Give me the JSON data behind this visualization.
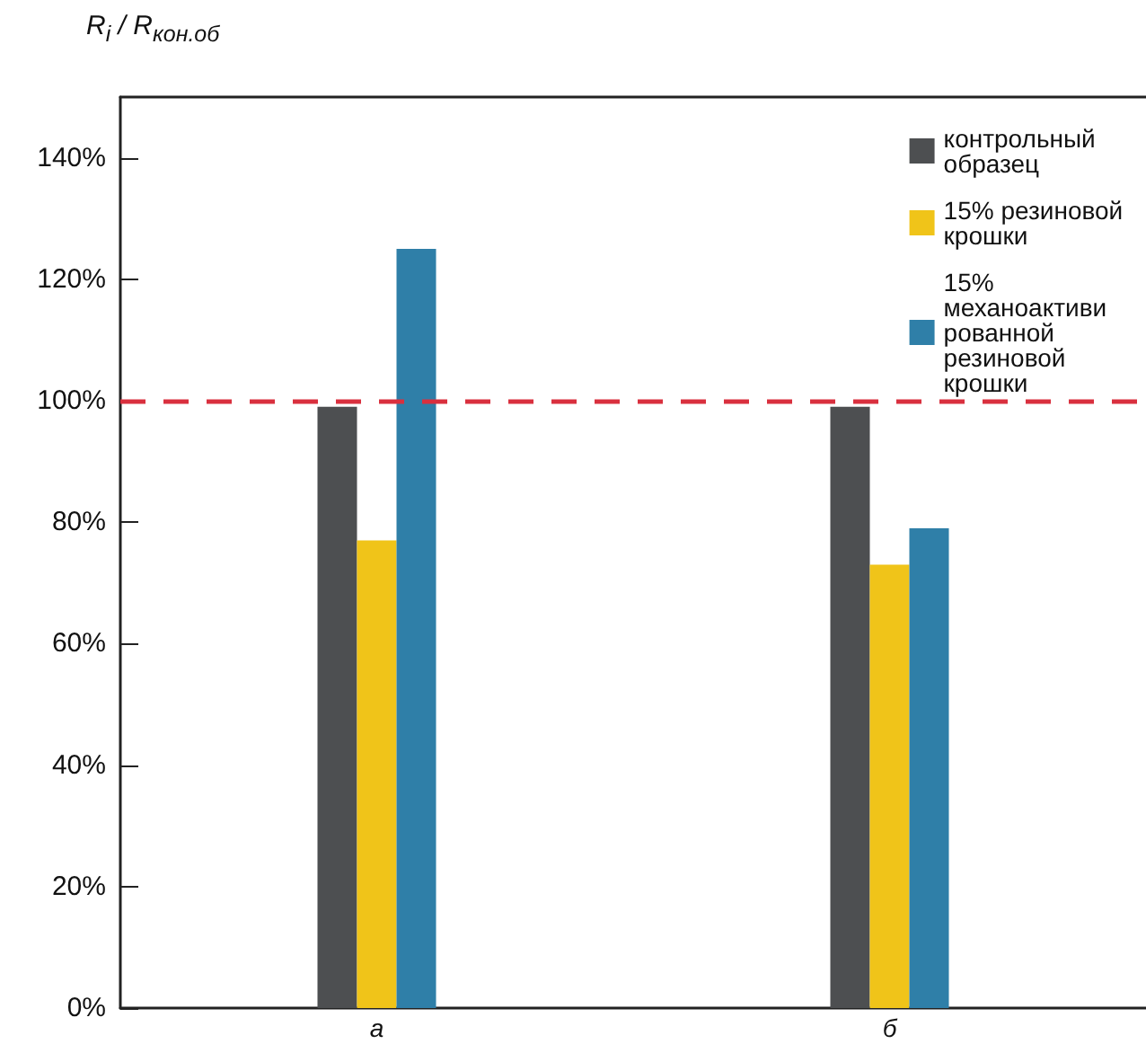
{
  "chart_data": {
    "type": "bar",
    "ylabel": "R$_{i}$ / R$_{кон.об}$",
    "categories": [
      "а",
      "б"
    ],
    "series": [
      {
        "name": "контрольный образец",
        "color": "#4d4f51",
        "values": [
          99,
          99
        ]
      },
      {
        "name": "15% резиновой крошки",
        "color": "#f0c419",
        "values": [
          77,
          73
        ]
      },
      {
        "name": "15% механоактивированной резиновой крошки",
        "color": "#2f7fa8",
        "values": [
          125,
          79
        ]
      }
    ],
    "ylim": [
      0,
      150
    ],
    "yticks": [
      {
        "value": 0,
        "label": "0%"
      },
      {
        "value": 20,
        "label": "20%"
      },
      {
        "value": 40,
        "label": "40%"
      },
      {
        "value": 60,
        "label": "60%"
      },
      {
        "value": 80,
        "label": "80%"
      },
      {
        "value": 100,
        "label": "100%"
      },
      {
        "value": 120,
        "label": "120%"
      },
      {
        "value": 140,
        "label": "140%"
      }
    ],
    "ref_lines": [
      {
        "axis": "y",
        "value": 100,
        "label": null,
        "color": "#d9303e",
        "line_style": "dashed"
      }
    ],
    "grid": false,
    "legend": "top right"
  }
}
